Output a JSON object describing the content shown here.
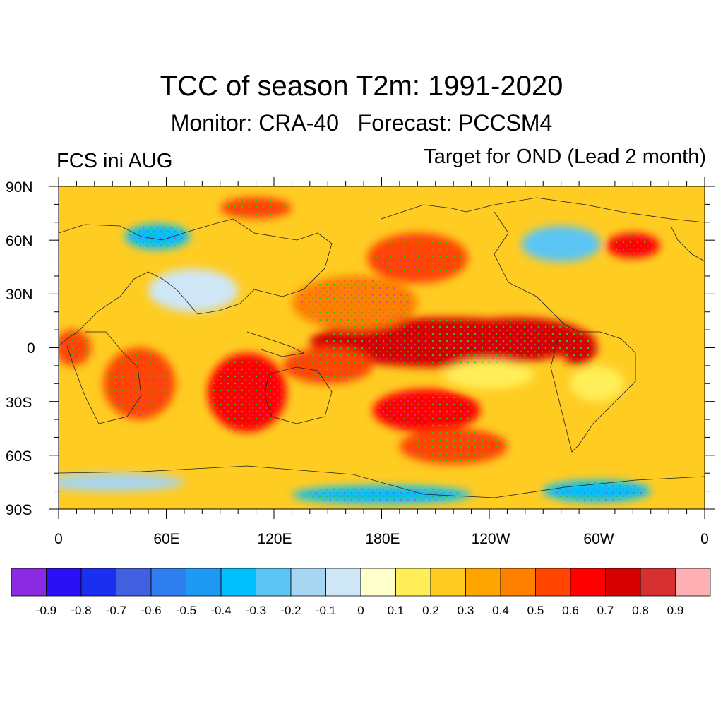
{
  "title": "TCC of season T2m: 1991-2020",
  "subtitle": "Monitor: CRA-40   Forecast: PCCSM4",
  "left_label": "FCS ini AUG",
  "right_label": "Target for OND (Lead 2 month)",
  "lat_labels": [
    "90N",
    "60N",
    "30N",
    "0",
    "30S",
    "60S",
    "90S"
  ],
  "lon_labels": [
    "0",
    "60E",
    "120E",
    "180E",
    "120W",
    "60W",
    "0"
  ],
  "colorbar": {
    "colors": [
      "#8a2be2",
      "#2a10f5",
      "#1a2ff0",
      "#4060e0",
      "#2e7ef0",
      "#1e9af5",
      "#00bfff",
      "#5cc5f5",
      "#a6d6f2",
      "#cfe6f7",
      "#ffffcc",
      "#ffee58",
      "#ffcc22",
      "#ffa500",
      "#ff7f00",
      "#ff4500",
      "#ff0000",
      "#d70000",
      "#d73030",
      "#ffb0b4"
    ],
    "labels": [
      "-0.9",
      "-0.8",
      "-0.7",
      "-0.6",
      "-0.5",
      "-0.4",
      "-0.3",
      "-0.2",
      "-0.1",
      "0",
      "0.1",
      "0.2",
      "0.3",
      "0.4",
      "0.5",
      "0.6",
      "0.7",
      "0.8",
      "0.9"
    ]
  },
  "map": {
    "projection": "cylindrical-equidistant",
    "lon_range": [
      0,
      360
    ],
    "lat_range": [
      -90,
      90
    ],
    "background_value": 0.2,
    "anomalies": [
      {
        "lon": 225,
        "lat": 0,
        "value": 0.9,
        "rlon": 40,
        "rlat": 8
      },
      {
        "lon": 215,
        "lat": 3,
        "value": 0.7,
        "rlon": 75,
        "rlat": 14
      },
      {
        "lon": 255,
        "lat": 5,
        "value": 0.7,
        "rlon": 40,
        "rlat": 12
      },
      {
        "lon": 290,
        "lat": 0,
        "value": 0.7,
        "rlon": 10,
        "rlat": 10
      },
      {
        "lon": 105,
        "lat": -25,
        "value": 0.6,
        "rlon": 22,
        "rlat": 22
      },
      {
        "lon": 150,
        "lat": -10,
        "value": 0.5,
        "rlon": 25,
        "rlat": 10
      },
      {
        "lon": 205,
        "lat": -35,
        "value": 0.6,
        "rlon": 30,
        "rlat": 12
      },
      {
        "lon": 220,
        "lat": -55,
        "value": 0.5,
        "rlon": 30,
        "rlat": 10
      },
      {
        "lon": 200,
        "lat": 50,
        "value": 0.5,
        "rlon": 28,
        "rlat": 14
      },
      {
        "lon": 320,
        "lat": 57,
        "value": 0.6,
        "rlon": 15,
        "rlat": 7
      },
      {
        "lon": 165,
        "lat": 25,
        "value": 0.4,
        "rlon": 35,
        "rlat": 15
      },
      {
        "lon": 45,
        "lat": -20,
        "value": 0.5,
        "rlon": 20,
        "rlat": 20
      },
      {
        "lon": 8,
        "lat": 0,
        "value": 0.5,
        "rlon": 10,
        "rlat": 10
      },
      {
        "lon": 110,
        "lat": 78,
        "value": 0.5,
        "rlon": 20,
        "rlat": 6
      },
      {
        "lon": 55,
        "lat": 62,
        "value": -0.4,
        "rlon": 18,
        "rlat": 7
      },
      {
        "lon": 280,
        "lat": 58,
        "value": -0.3,
        "rlon": 22,
        "rlat": 10
      },
      {
        "lon": 75,
        "lat": 32,
        "value": -0.1,
        "rlon": 25,
        "rlat": 12
      },
      {
        "lon": 180,
        "lat": -82,
        "value": -0.4,
        "rlon": 50,
        "rlat": 5
      },
      {
        "lon": 300,
        "lat": -80,
        "value": -0.4,
        "rlon": 30,
        "rlat": 6
      },
      {
        "lon": 30,
        "lat": -75,
        "value": -0.2,
        "rlon": 40,
        "rlat": 5
      },
      {
        "lon": 240,
        "lat": -15,
        "value": 0.1,
        "rlon": 25,
        "rlat": 8
      },
      {
        "lon": 300,
        "lat": -20,
        "value": 0.1,
        "rlon": 15,
        "rlat": 10
      }
    ]
  }
}
